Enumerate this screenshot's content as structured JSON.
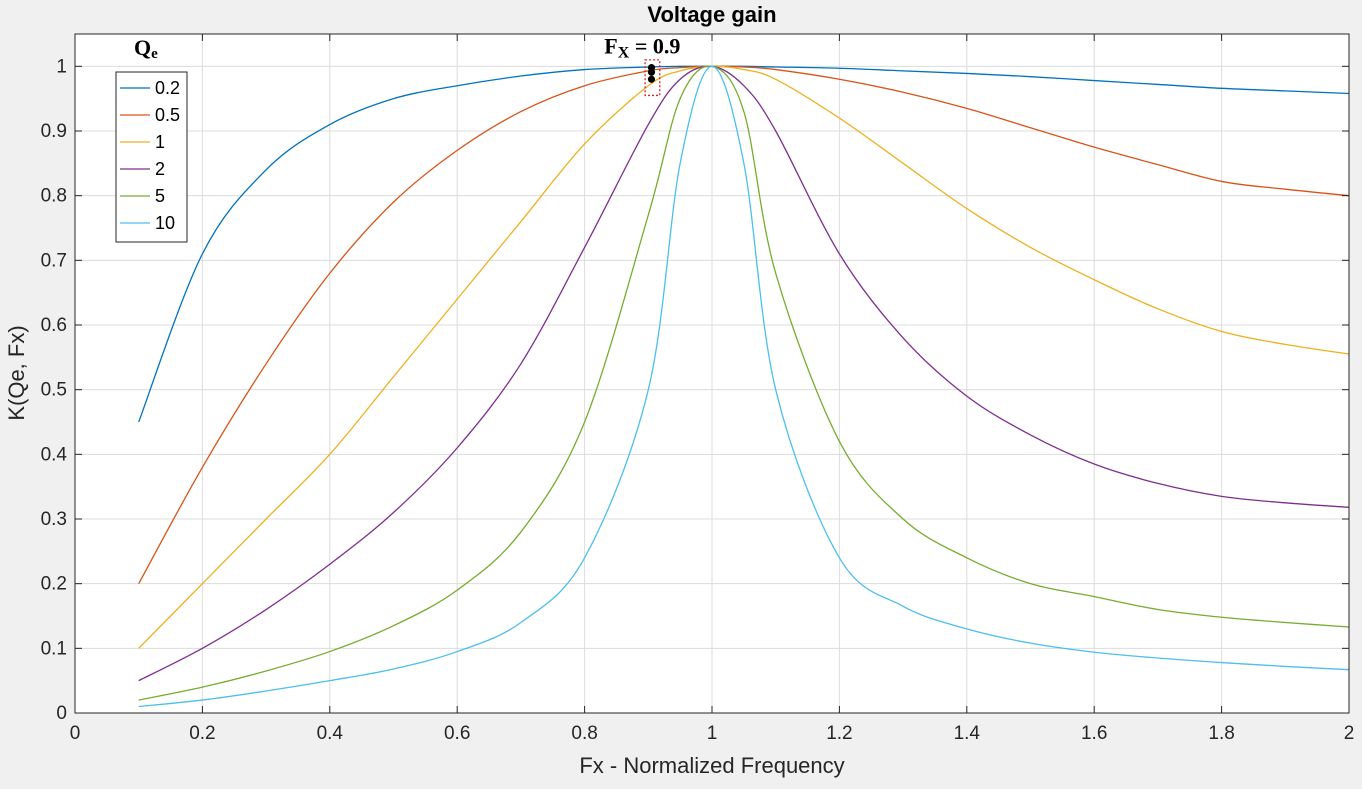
{
  "chart_data": {
    "type": "line",
    "title": "Voltage gain",
    "xlabel": "Fx - Normalized Frequency",
    "ylabel": "K(Qe, Fx)",
    "xlim": [
      0,
      2
    ],
    "ylim": [
      0,
      1.05
    ],
    "x_ticks": [
      0,
      0.2,
      0.4,
      0.6,
      0.8,
      1,
      1.2,
      1.4,
      1.6,
      1.8,
      2
    ],
    "x_tick_labels": [
      "0",
      "0.2",
      "0.4",
      "0.6",
      "0.8",
      "1",
      "1.2",
      "1.4",
      "1.6",
      "1.8",
      "2"
    ],
    "y_ticks": [
      0,
      0.1,
      0.2,
      0.3,
      0.4,
      0.5,
      0.6,
      0.7,
      0.8,
      0.9,
      1
    ],
    "y_tick_labels": [
      "0",
      "0.1",
      "0.2",
      "0.3",
      "0.4",
      "0.5",
      "0.6",
      "0.7",
      "0.8",
      "0.9",
      "1"
    ],
    "grid": true,
    "legend": {
      "title": "Q",
      "title_sub": "e",
      "placement": "top-left"
    },
    "x": [
      0.1,
      0.2,
      0.3,
      0.4,
      0.5,
      0.6,
      0.7,
      0.8,
      0.9,
      0.95,
      1.0,
      1.05,
      1.1,
      1.2,
      1.3,
      1.4,
      1.5,
      1.6,
      1.7,
      1.8,
      1.9,
      2.0
    ],
    "series": [
      {
        "name": "0.2",
        "color": "#0072BD",
        "values": [
          0.45,
          0.71,
          0.84,
          0.91,
          0.95,
          0.97,
          0.985,
          0.995,
          0.999,
          1.0,
          1.0,
          1.0,
          0.999,
          0.997,
          0.993,
          0.989,
          0.984,
          0.978,
          0.972,
          0.966,
          0.962,
          0.958
        ]
      },
      {
        "name": "0.5",
        "color": "#D95319",
        "values": [
          0.2,
          0.38,
          0.54,
          0.68,
          0.79,
          0.87,
          0.93,
          0.97,
          0.993,
          0.998,
          1.0,
          0.999,
          0.995,
          0.98,
          0.96,
          0.935,
          0.905,
          0.875,
          0.848,
          0.822,
          0.81,
          0.8
        ]
      },
      {
        "name": "1",
        "color": "#EDB120",
        "values": [
          0.1,
          0.2,
          0.3,
          0.4,
          0.52,
          0.64,
          0.76,
          0.88,
          0.97,
          0.993,
          1.0,
          0.995,
          0.98,
          0.92,
          0.85,
          0.78,
          0.72,
          0.67,
          0.625,
          0.59,
          0.57,
          0.555
        ]
      },
      {
        "name": "2",
        "color": "#7E2F8E",
        "values": [
          0.05,
          0.1,
          0.16,
          0.23,
          0.31,
          0.41,
          0.54,
          0.72,
          0.91,
          0.98,
          1.0,
          0.97,
          0.9,
          0.71,
          0.58,
          0.49,
          0.43,
          0.385,
          0.355,
          0.335,
          0.325,
          0.318
        ]
      },
      {
        "name": "5",
        "color": "#77AC30",
        "values": [
          0.02,
          0.04,
          0.065,
          0.095,
          0.135,
          0.19,
          0.28,
          0.45,
          0.77,
          0.95,
          1.0,
          0.93,
          0.68,
          0.42,
          0.3,
          0.24,
          0.2,
          0.18,
          0.16,
          0.148,
          0.14,
          0.133
        ]
      },
      {
        "name": "10",
        "color": "#4DBEEE",
        "values": [
          0.01,
          0.02,
          0.034,
          0.05,
          0.068,
          0.095,
          0.14,
          0.24,
          0.5,
          0.85,
          1.0,
          0.85,
          0.5,
          0.24,
          0.165,
          0.13,
          0.108,
          0.094,
          0.085,
          0.078,
          0.072,
          0.067
        ]
      }
    ],
    "annotations": [
      {
        "text": "F",
        "sub": "X",
        "suffix": " = 0.9",
        "x": 0.9,
        "y": 1.0
      }
    ],
    "markers": [
      {
        "x": 0.905,
        "y": 0.998
      },
      {
        "x": 0.905,
        "y": 0.991
      },
      {
        "x": 0.905,
        "y": 0.98
      }
    ],
    "highlight_box": {
      "x0": 0.895,
      "x1": 0.918,
      "y0": 0.955,
      "y1": 1.01,
      "color": "#e02020"
    }
  }
}
